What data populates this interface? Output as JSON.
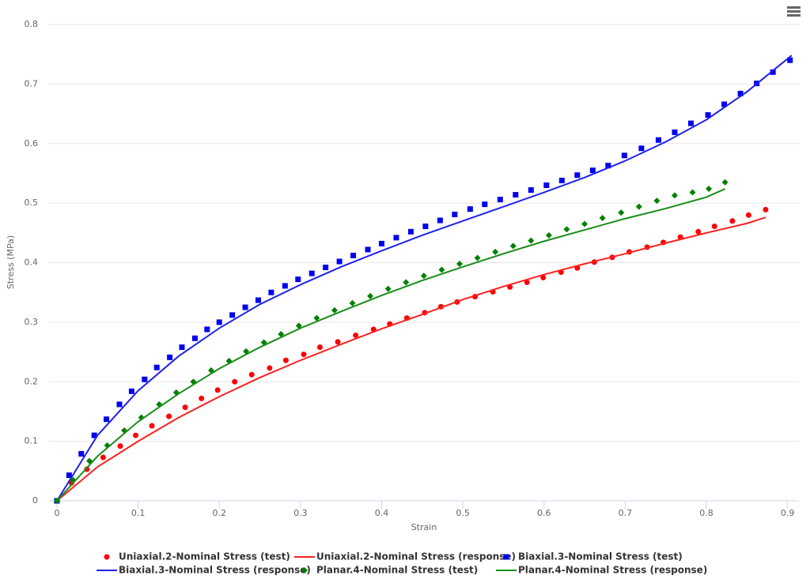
{
  "chart_data": {
    "type": "scatter",
    "x_label": "Strain",
    "y_label": "Stress (MPa)",
    "xlim": [
      -0.0097,
      0.914
    ],
    "ylim": [
      0,
      0.8
    ],
    "xticks": [
      0,
      0.1,
      0.2,
      0.3,
      0.4,
      0.5,
      0.6,
      0.7,
      0.8,
      0.9
    ],
    "yticks": [
      0,
      0.1,
      0.2,
      0.3,
      0.4,
      0.5,
      0.6,
      0.7,
      0.8
    ],
    "grid": true,
    "legend": "bottom",
    "series": [
      {
        "name": "Uniaxial.2-Nominal Stress (test)",
        "color": "#ff0000",
        "type": "scatter",
        "marker": "circle",
        "x": [
          0,
          0.018,
          0.037,
          0.057,
          0.078,
          0.097,
          0.117,
          0.138,
          0.158,
          0.178,
          0.198,
          0.219,
          0.24,
          0.262,
          0.282,
          0.304,
          0.324,
          0.346,
          0.368,
          0.39,
          0.41,
          0.431,
          0.453,
          0.473,
          0.493,
          0.515,
          0.537,
          0.558,
          0.579,
          0.599,
          0.621,
          0.641,
          0.662,
          0.684,
          0.705,
          0.727,
          0.747,
          0.768,
          0.79,
          0.81,
          0.832,
          0.852,
          0.873
        ],
        "values": [
          0,
          0.03,
          0.053,
          0.073,
          0.092,
          0.11,
          0.126,
          0.142,
          0.157,
          0.172,
          0.186,
          0.2,
          0.212,
          0.223,
          0.236,
          0.246,
          0.258,
          0.267,
          0.278,
          0.288,
          0.297,
          0.307,
          0.316,
          0.326,
          0.334,
          0.343,
          0.351,
          0.359,
          0.367,
          0.375,
          0.384,
          0.391,
          0.401,
          0.409,
          0.418,
          0.426,
          0.434,
          0.443,
          0.452,
          0.461,
          0.47,
          0.48,
          0.489
        ]
      },
      {
        "name": "Uniaxial.2-Nominal Stress (response)",
        "color": "#ff2020",
        "type": "line",
        "x": [
          0,
          0.05,
          0.1,
          0.15,
          0.2,
          0.25,
          0.3,
          0.35,
          0.4,
          0.45,
          0.5,
          0.55,
          0.6,
          0.65,
          0.7,
          0.75,
          0.8,
          0.85,
          0.873
        ],
        "values": [
          0,
          0.057,
          0.1,
          0.14,
          0.175,
          0.207,
          0.236,
          0.263,
          0.289,
          0.313,
          0.338,
          0.36,
          0.38,
          0.398,
          0.415,
          0.433,
          0.45,
          0.466,
          0.476
        ]
      },
      {
        "name": "Biaxial.3-Nominal Stress (test)",
        "color": "#0000ee",
        "type": "scatter",
        "marker": "square",
        "x": [
          0,
          0.015,
          0.03,
          0.046,
          0.061,
          0.077,
          0.092,
          0.108,
          0.123,
          0.139,
          0.154,
          0.17,
          0.185,
          0.2,
          0.216,
          0.232,
          0.248,
          0.264,
          0.281,
          0.297,
          0.314,
          0.331,
          0.348,
          0.365,
          0.383,
          0.4,
          0.418,
          0.436,
          0.454,
          0.472,
          0.49,
          0.509,
          0.527,
          0.546,
          0.565,
          0.584,
          0.603,
          0.622,
          0.641,
          0.66,
          0.679,
          0.699,
          0.72,
          0.741,
          0.761,
          0.781,
          0.802,
          0.822,
          0.842,
          0.862,
          0.882,
          0.903
        ],
        "values": [
          0,
          0.043,
          0.079,
          0.11,
          0.137,
          0.162,
          0.184,
          0.204,
          0.224,
          0.241,
          0.258,
          0.273,
          0.288,
          0.3,
          0.312,
          0.325,
          0.337,
          0.35,
          0.361,
          0.372,
          0.382,
          0.392,
          0.402,
          0.412,
          0.422,
          0.432,
          0.442,
          0.452,
          0.461,
          0.471,
          0.481,
          0.49,
          0.498,
          0.506,
          0.514,
          0.522,
          0.53,
          0.538,
          0.547,
          0.555,
          0.563,
          0.58,
          0.592,
          0.606,
          0.619,
          0.634,
          0.648,
          0.666,
          0.684,
          0.701,
          0.72,
          0.74
        ]
      },
      {
        "name": "Biaxial.3-Nominal Stress (response)",
        "color": "#2020ee",
        "type": "line",
        "x": [
          0,
          0.05,
          0.1,
          0.15,
          0.2,
          0.25,
          0.3,
          0.35,
          0.4,
          0.45,
          0.5,
          0.55,
          0.6,
          0.65,
          0.7,
          0.75,
          0.8,
          0.85,
          0.905
        ],
        "values": [
          0,
          0.11,
          0.185,
          0.243,
          0.29,
          0.33,
          0.363,
          0.393,
          0.42,
          0.446,
          0.47,
          0.494,
          0.518,
          0.543,
          0.571,
          0.603,
          0.64,
          0.687,
          0.748
        ]
      },
      {
        "name": "Planar.4-Nominal Stress (test)",
        "color": "#008000",
        "type": "scatter",
        "marker": "diamond",
        "x": [
          0,
          0.02,
          0.04,
          0.062,
          0.083,
          0.104,
          0.126,
          0.147,
          0.168,
          0.19,
          0.212,
          0.233,
          0.255,
          0.276,
          0.298,
          0.32,
          0.342,
          0.364,
          0.386,
          0.408,
          0.43,
          0.452,
          0.474,
          0.496,
          0.518,
          0.54,
          0.562,
          0.584,
          0.606,
          0.628,
          0.65,
          0.672,
          0.695,
          0.717,
          0.739,
          0.761,
          0.783,
          0.803,
          0.823
        ],
        "values": [
          0,
          0.035,
          0.067,
          0.093,
          0.118,
          0.14,
          0.162,
          0.182,
          0.2,
          0.219,
          0.235,
          0.251,
          0.266,
          0.28,
          0.294,
          0.307,
          0.32,
          0.332,
          0.344,
          0.356,
          0.367,
          0.378,
          0.388,
          0.398,
          0.408,
          0.418,
          0.428,
          0.437,
          0.446,
          0.456,
          0.465,
          0.475,
          0.484,
          0.494,
          0.504,
          0.513,
          0.518,
          0.524,
          0.535
        ]
      },
      {
        "name": "Planar.4-Nominal Stress (response)",
        "color": "#1a8c1a",
        "type": "line",
        "x": [
          0,
          0.05,
          0.1,
          0.15,
          0.2,
          0.25,
          0.3,
          0.35,
          0.4,
          0.45,
          0.5,
          0.55,
          0.6,
          0.65,
          0.7,
          0.75,
          0.8,
          0.823
        ],
        "values": [
          0,
          0.075,
          0.133,
          0.18,
          0.222,
          0.258,
          0.29,
          0.318,
          0.345,
          0.37,
          0.393,
          0.415,
          0.436,
          0.455,
          0.474,
          0.491,
          0.51,
          0.524
        ]
      }
    ]
  }
}
